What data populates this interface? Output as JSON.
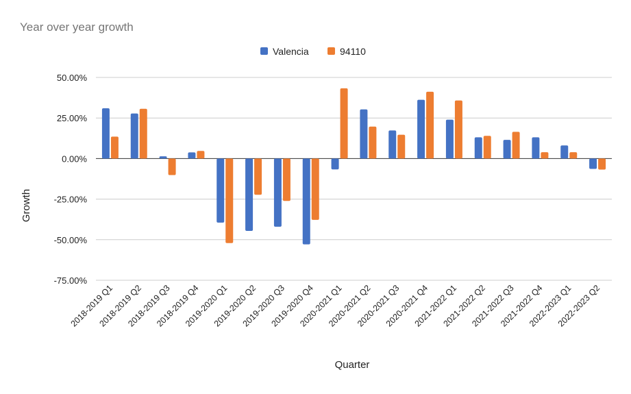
{
  "chart_data": {
    "type": "bar",
    "title": "Year over year growth",
    "xlabel": "Quarter",
    "ylabel": "Growth",
    "ylim": [
      -75,
      50
    ],
    "yticks": [
      "50.00%",
      "25.00%",
      "0.00%",
      "-25.00%",
      "-50.00%",
      "-75.00%"
    ],
    "ytick_values": [
      50,
      25,
      0,
      -25,
      -50,
      -75
    ],
    "grid": true,
    "legend_position": "top",
    "categories": [
      "2018-2019 Q1",
      "2018-2019 Q2",
      "2018-2019 Q3",
      "2018-2019 Q4",
      "2019-2020 Q1",
      "2019-2020 Q2",
      "2019-2020 Q3",
      "2019-2020 Q4",
      "2020-2021 Q1",
      "2020-2021 Q2",
      "2020-2021 Q3",
      "2020-2021 Q4",
      "2021-2022 Q1",
      "2021-2022 Q2",
      "2021-2022 Q3",
      "2021-2022 Q4",
      "2022-2023 Q1",
      "2022-2023 Q2"
    ],
    "series": [
      {
        "name": "Valencia",
        "color": "#4472c4",
        "values": [
          31.0,
          27.8,
          1.4,
          3.8,
          -39.5,
          -44.6,
          -42.0,
          -52.9,
          -6.7,
          30.3,
          17.3,
          36.2,
          24.0,
          13.1,
          11.5,
          13.1,
          8.1,
          -6.4
        ]
      },
      {
        "name": "94110",
        "color": "#ed7d31",
        "values": [
          13.5,
          30.7,
          -10.2,
          4.7,
          -52.1,
          -22.3,
          -26.1,
          -37.8,
          43.3,
          19.7,
          14.7,
          41.2,
          35.8,
          14.0,
          16.5,
          3.9,
          3.9,
          -6.8
        ]
      }
    ]
  }
}
